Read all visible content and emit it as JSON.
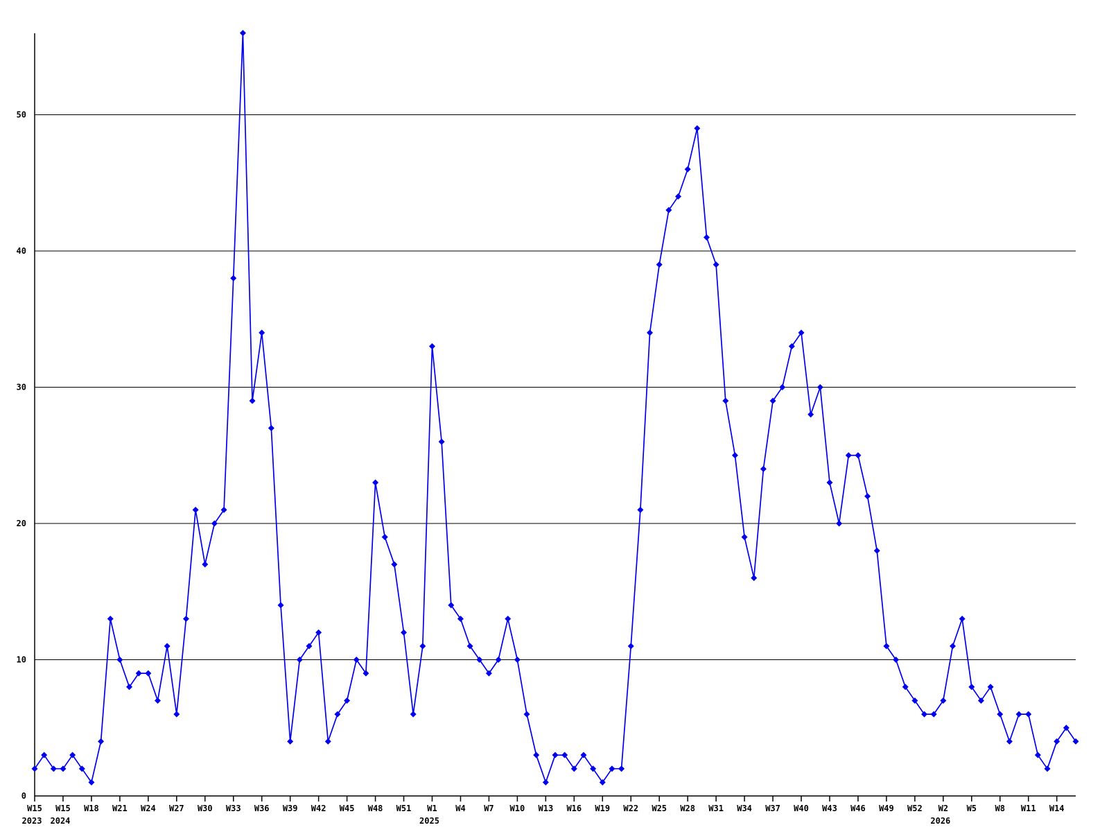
{
  "chart_data": {
    "type": "line",
    "title": "",
    "xlabel": "",
    "ylabel": "",
    "legend": null,
    "grid": "horizontal",
    "background_color": "#ffffff",
    "line_color": "#0000ee",
    "marker_color": "#0000ee",
    "grid_color": "#000000",
    "axis_color": "#000000",
    "marker": "diamond",
    "ylim": [
      0,
      57
    ],
    "y_ticks": [
      0,
      10,
      20,
      30,
      40,
      50
    ],
    "tick_every": 3,
    "x_tick_labels": [
      {
        "week": "W15",
        "year": "2023"
      },
      {
        "week": "W15",
        "year": "2024"
      },
      {
        "week": "W18"
      },
      {
        "week": "W21"
      },
      {
        "week": "W24"
      },
      {
        "week": "W27"
      },
      {
        "week": "W30"
      },
      {
        "week": "W33"
      },
      {
        "week": "W36"
      },
      {
        "week": "W39"
      },
      {
        "week": "W42"
      },
      {
        "week": "W45"
      },
      {
        "week": "W48"
      },
      {
        "week": "W51"
      },
      {
        "week": "W1",
        "year": "2025"
      },
      {
        "week": "W4"
      },
      {
        "week": "W7"
      },
      {
        "week": "W10"
      },
      {
        "week": "W13"
      },
      {
        "week": "W16"
      },
      {
        "week": "W19"
      },
      {
        "week": "W22"
      },
      {
        "week": "W25"
      },
      {
        "week": "W28"
      },
      {
        "week": "W31"
      },
      {
        "week": "W34"
      },
      {
        "week": "W37"
      },
      {
        "week": "W40"
      },
      {
        "week": "W43"
      },
      {
        "week": "W46"
      },
      {
        "week": "W49"
      },
      {
        "week": "W52"
      },
      {
        "week": "W2",
        "year": "2026"
      },
      {
        "week": "W5"
      },
      {
        "week": "W8"
      },
      {
        "week": "W11"
      },
      {
        "week": "W14"
      }
    ],
    "values": [
      2,
      3,
      2,
      2,
      3,
      2,
      1,
      4,
      13,
      10,
      8,
      9,
      9,
      7,
      11,
      6,
      13,
      21,
      17,
      20,
      21,
      38,
      56,
      29,
      34,
      27,
      14,
      4,
      10,
      11,
      12,
      4,
      6,
      7,
      10,
      9,
      23,
      19,
      17,
      12,
      6,
      11,
      33,
      26,
      14,
      13,
      11,
      10,
      9,
      10,
      13,
      10,
      6,
      3,
      1,
      3,
      3,
      2,
      3,
      2,
      1,
      2,
      2,
      11,
      21,
      34,
      39,
      43,
      44,
      46,
      49,
      41,
      39,
      29,
      25,
      19,
      16,
      24,
      29,
      30,
      33,
      34,
      28,
      30,
      23,
      20,
      25,
      25,
      22,
      18,
      11,
      10,
      8,
      7,
      6,
      6,
      7,
      11,
      13,
      8,
      7,
      8,
      6,
      4,
      6,
      6,
      3,
      2,
      4,
      5,
      4
    ]
  }
}
